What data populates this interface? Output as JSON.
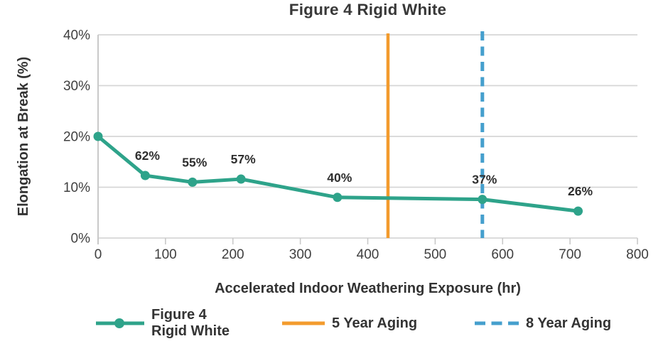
{
  "title": "Figure 4 Rigid White",
  "colors": {
    "series_teal": "#2EA38A",
    "aging_5yr_orange": "#F39B2D",
    "aging_8yr_blue": "#459FCD",
    "gridline_gray": "#D6D6D6",
    "axis_gray": "#C9C9C9",
    "text_dark": "#333333"
  },
  "chart_data": {
    "type": "line",
    "title": "Figure 4 Rigid White",
    "xlabel": "Accelerated Indoor Weathering Exposure (hr)",
    "ylabel": "Elongation at Break (%)",
    "xlim": [
      0,
      800
    ],
    "ylim": [
      0,
      40
    ],
    "x_ticks": [
      0,
      100,
      200,
      300,
      400,
      500,
      600,
      700,
      800
    ],
    "y_ticks": [
      {
        "value": 0,
        "label": "0%"
      },
      {
        "value": 10,
        "label": "10%"
      },
      {
        "value": 20,
        "label": "20%"
      },
      {
        "value": 30,
        "label": "30%"
      },
      {
        "value": 40,
        "label": "40%"
      }
    ],
    "grid": "horizontal gridlines on, no right/top frame",
    "legend_position": "bottom",
    "series": [
      {
        "name": "Figure 4 Rigid White",
        "color": "#2EA38A",
        "marker": "circle",
        "points": [
          {
            "x": 0,
            "y": 20.0,
            "label": ""
          },
          {
            "x": 70,
            "y": 12.3,
            "label": "62%"
          },
          {
            "x": 140,
            "y": 11.0,
            "label": "55%"
          },
          {
            "x": 212,
            "y": 11.6,
            "label": "57%"
          },
          {
            "x": 355,
            "y": 8.0,
            "label": "40%"
          },
          {
            "x": 570,
            "y": 7.6,
            "label": "37%"
          },
          {
            "x": 712,
            "y": 5.3,
            "label": "26%"
          }
        ]
      }
    ],
    "reference_lines": [
      {
        "name": "5 Year Aging",
        "x": 430,
        "style": "solid",
        "color": "#F39B2D"
      },
      {
        "name": "8 Year Aging",
        "x": 570,
        "style": "dashed",
        "color": "#459FCD"
      }
    ]
  },
  "legend": {
    "items": [
      {
        "id": "series-figure4-rigid-white",
        "swatch": "teal-line-with-dot",
        "lines": [
          "Figure 4",
          "Rigid White"
        ]
      },
      {
        "id": "aging-5-year",
        "swatch": "orange-solid-line",
        "lines": [
          "5 Year Aging"
        ]
      },
      {
        "id": "aging-8-year",
        "swatch": "blue-dashed-line",
        "lines": [
          "8 Year Aging"
        ]
      }
    ]
  }
}
